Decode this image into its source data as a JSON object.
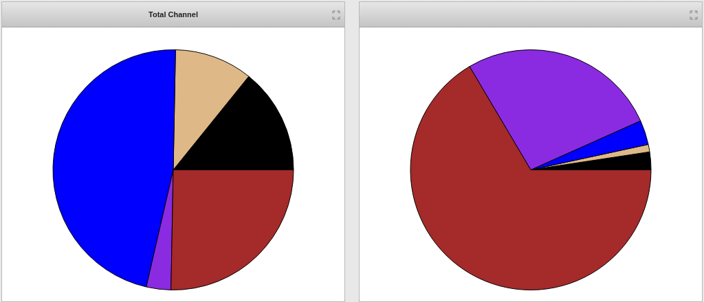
{
  "chart_data": [
    {
      "type": "pie",
      "title": "Total Channel",
      "categories": [
        null,
        null,
        null,
        null,
        null
      ],
      "values": [
        14.2,
        10.5,
        46.7,
        3.3,
        25.3
      ],
      "colors": [
        "#000000",
        "#deb887",
        "#0000ff",
        "#8a2be2",
        "#a52a2a"
      ]
    },
    {
      "type": "pie",
      "categories": [
        null,
        null,
        null,
        null,
        null
      ],
      "values": [
        2.4,
        1.0,
        3.3,
        26.8,
        66.5
      ],
      "colors": [
        "#000000",
        "#deb887",
        "#0000ff",
        "#8a2be2",
        "#a52a2a"
      ]
    }
  ]
}
